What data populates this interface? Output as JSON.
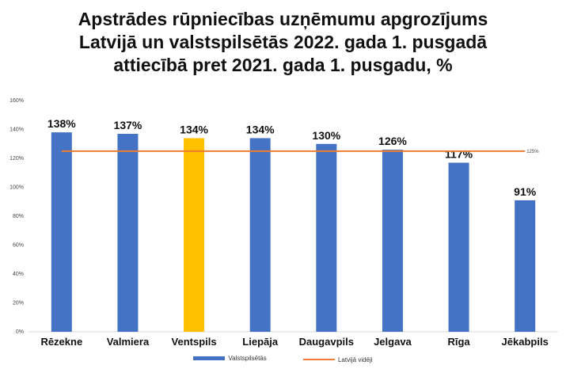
{
  "colors": {
    "bar": "#4472C4",
    "highlight": "#FFC000",
    "line": "#ED7D31",
    "grid": "#d9d9d9"
  },
  "chart_data": {
    "type": "bar",
    "title_lines": [
      "Apstrādes rūpniecības uzņēmumu apgrozījums",
      "Latvijā un valstspilsētās 2022. gada 1. pusgadā",
      "attiecībā pret 2021. gada 1. pusgadu, %"
    ],
    "categories": [
      "Rēzekne",
      "Valmiera",
      "Ventspils",
      "Liepāja",
      "Daugavpils",
      "Jelgava",
      "Rīga",
      "Jēkabpils"
    ],
    "series": [
      {
        "name": "Valstspilsētās",
        "type": "bar",
        "values": [
          138,
          137,
          134,
          134,
          130,
          126,
          117,
          91
        ],
        "labels": [
          "138%",
          "137%",
          "134%",
          "134%",
          "130%",
          "126%",
          "117%",
          "91%"
        ],
        "highlight_index": 2
      },
      {
        "name": "Latvijā vidēji",
        "type": "line",
        "value": 125,
        "label": "125%"
      }
    ],
    "y_ticks": [
      "0%",
      "20%",
      "40%",
      "60%",
      "80%",
      "100%",
      "120%",
      "140%",
      "160%"
    ],
    "ylim": [
      0,
      160
    ],
    "grid": false,
    "legend_position": "bottom"
  }
}
